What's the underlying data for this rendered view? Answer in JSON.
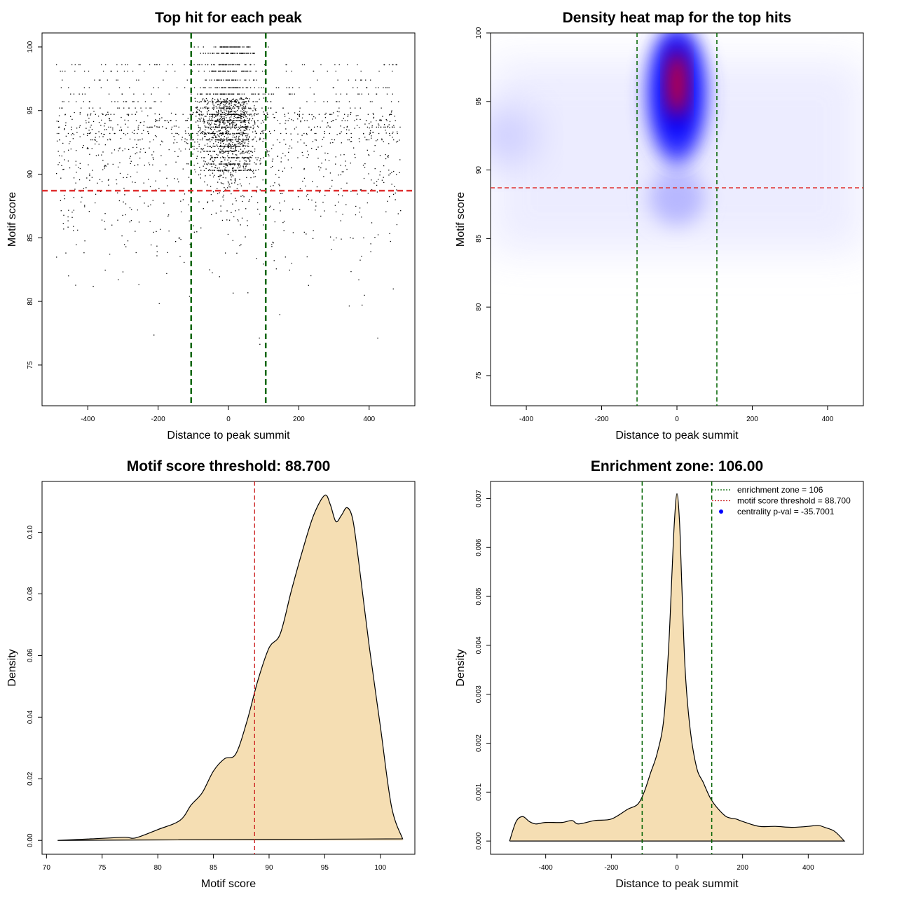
{
  "chart_data": [
    {
      "type": "scatter",
      "title": "Top hit for each peak",
      "xlabel": "Distance to peak summit",
      "ylabel": "Motif score",
      "xlim": [
        -530,
        530
      ],
      "ylim": [
        71.8,
        101.1
      ],
      "xticks": [
        -400,
        -200,
        0,
        200,
        400
      ],
      "xtick_labels": [
        "-400",
        "-200",
        "0",
        "200",
        "400"
      ],
      "yticks": [
        75,
        80,
        85,
        90,
        95,
        100
      ],
      "ytick_labels": [
        "75",
        "80",
        "85",
        "90",
        "95",
        "100"
      ],
      "vlines": [
        {
          "x": -106,
          "color": "#006400",
          "style": "dashed"
        },
        {
          "x": 106,
          "color": "#006400",
          "style": "dashed"
        }
      ],
      "hlines": [
        {
          "y": 88.7,
          "color": "#e03030",
          "style": "dashed"
        }
      ],
      "points_description": "approx 4000 points, concentrated between -100 and 100, scores 72-100",
      "grid": false
    },
    {
      "type": "heatmap",
      "title": "Density heat map for the top hits",
      "xlabel": "Distance to peak summit",
      "ylabel": "Motif score",
      "xlim": [
        -495,
        495
      ],
      "ylim": [
        72.8,
        100
      ],
      "xticks": [
        -400,
        -200,
        0,
        200,
        400
      ],
      "xtick_labels": [
        "-400",
        "-200",
        "0",
        "200",
        "400"
      ],
      "yticks": [
        75,
        80,
        85,
        90,
        95,
        100
      ],
      "ytick_labels": [
        "75",
        "80",
        "85",
        "90",
        "95",
        "100"
      ],
      "peak": {
        "x": 0,
        "y": 97
      },
      "color_scale": [
        "#ffffff",
        "#0000ff",
        "#ff0000"
      ],
      "vlines": [
        {
          "x": -106,
          "color": "#006400",
          "style": "dashed"
        },
        {
          "x": 106,
          "color": "#006400",
          "style": "dashed"
        }
      ],
      "hlines": [
        {
          "y": 88.7,
          "color": "#e03030",
          "style": "dashed"
        }
      ],
      "grid": false
    },
    {
      "type": "area",
      "title": "Motif score threshold: 88.700",
      "xlabel": "Motif score",
      "ylabel": "Density",
      "xlim": [
        69.6,
        103.1
      ],
      "ylim": [
        -0.0045,
        0.1165
      ],
      "xticks": [
        70,
        75,
        80,
        85,
        90,
        95,
        100
      ],
      "xtick_labels": [
        "70",
        "75",
        "80",
        "85",
        "90",
        "95",
        "100"
      ],
      "yticks": [
        0,
        0.02,
        0.04,
        0.06,
        0.08,
        0.1
      ],
      "ytick_labels": [
        "0.00",
        "0.02",
        "0.04",
        "0.06",
        "0.08",
        "0.10"
      ],
      "fill": "#f5deb3",
      "x": [
        71,
        74,
        77,
        78,
        80,
        82,
        83,
        84,
        85,
        86,
        87,
        88,
        89,
        90,
        91,
        92,
        93,
        94,
        95,
        95.5,
        96,
        96.5,
        97,
        97.5,
        98,
        99,
        100,
        101,
        102
      ],
      "y": [
        0,
        0.0005,
        0.001,
        0.0008,
        0.0035,
        0.0065,
        0.0115,
        0.0155,
        0.0225,
        0.0265,
        0.028,
        0.0385,
        0.052,
        0.0625,
        0.067,
        0.081,
        0.094,
        0.1055,
        0.112,
        0.109,
        0.1035,
        0.1055,
        0.108,
        0.1045,
        0.092,
        0.063,
        0.037,
        0.011,
        0.0005
      ],
      "vlines": [
        {
          "x": 88.7,
          "color": "#cc2222",
          "style": "dashed"
        }
      ],
      "grid": false
    },
    {
      "type": "area",
      "title": "Enrichment zone: 106.00",
      "xlabel": "Distance to peak summit",
      "ylabel": "Density",
      "xlim": [
        -568,
        568
      ],
      "ylim": [
        -0.00027,
        0.00735
      ],
      "xticks": [
        -400,
        -200,
        0,
        200,
        400
      ],
      "xtick_labels": [
        "-400",
        "-200",
        "0",
        "200",
        "400"
      ],
      "yticks": [
        0,
        0.001,
        0.002,
        0.003,
        0.004,
        0.005,
        0.006,
        0.007
      ],
      "ytick_labels": [
        "0.000",
        "0.001",
        "0.002",
        "0.003",
        "0.004",
        "0.005",
        "0.006",
        "0.007"
      ],
      "fill": "#f5deb3",
      "x": [
        -510,
        -490,
        -470,
        -450,
        -430,
        -400,
        -350,
        -320,
        -300,
        -250,
        -200,
        -150,
        -120,
        -100,
        -80,
        -60,
        -40,
        -25,
        -15,
        -8,
        0,
        8,
        15,
        25,
        40,
        60,
        80,
        100,
        120,
        150,
        180,
        200,
        250,
        300,
        350,
        400,
        430,
        450,
        480,
        510
      ],
      "y": [
        0,
        0.0004,
        0.0005,
        0.0004,
        0.00035,
        0.00038,
        0.00038,
        0.00042,
        0.00035,
        0.00042,
        0.00045,
        0.00065,
        0.00075,
        0.001,
        0.0014,
        0.0018,
        0.0025,
        0.004,
        0.0055,
        0.0065,
        0.0071,
        0.0065,
        0.0052,
        0.0035,
        0.0023,
        0.0015,
        0.0012,
        0.0009,
        0.0007,
        0.0005,
        0.00045,
        0.0004,
        0.0003,
        0.0003,
        0.00028,
        0.0003,
        0.00032,
        0.00028,
        0.0002,
        0
      ],
      "vlines": [
        {
          "x": -106,
          "color": "#006400",
          "style": "dashed"
        },
        {
          "x": 106,
          "color": "#006400",
          "style": "dashed"
        }
      ],
      "legend": {
        "position": "top-right",
        "items": [
          {
            "label": "enrichment zone = 106",
            "color": "#006400",
            "kind": "dotted-line"
          },
          {
            "label": "motif score threshold = 88.700",
            "color": "#cc2222",
            "kind": "dotted-line"
          },
          {
            "label": "centrality p-val = -35.7001",
            "color": "#0000ff",
            "kind": "point"
          }
        ]
      },
      "grid": false
    }
  ]
}
